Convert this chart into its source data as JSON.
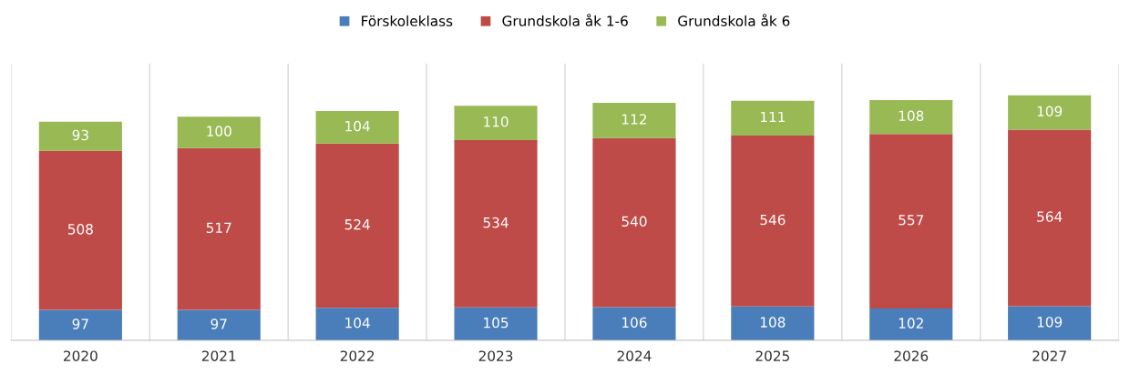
{
  "chart_data": {
    "type": "bar",
    "stacked": true,
    "data_labels": true,
    "legend": "top",
    "grid": "x",
    "categories": [
      "2020",
      "2021",
      "2022",
      "2023",
      "2024",
      "2025",
      "2026",
      "2027"
    ],
    "series": [
      {
        "name": "Förskoleklass",
        "color": "#4a7ebb",
        "values": [
          97,
          97,
          104,
          105,
          106,
          108,
          102,
          109
        ]
      },
      {
        "name": "Grundskola åk 1-6",
        "color": "#be4b48",
        "values": [
          508,
          517,
          524,
          534,
          540,
          546,
          557,
          564
        ]
      },
      {
        "name": "Grundskola åk 6",
        "color": "#98b954",
        "values": [
          93,
          100,
          104,
          110,
          112,
          111,
          108,
          109
        ]
      }
    ]
  }
}
